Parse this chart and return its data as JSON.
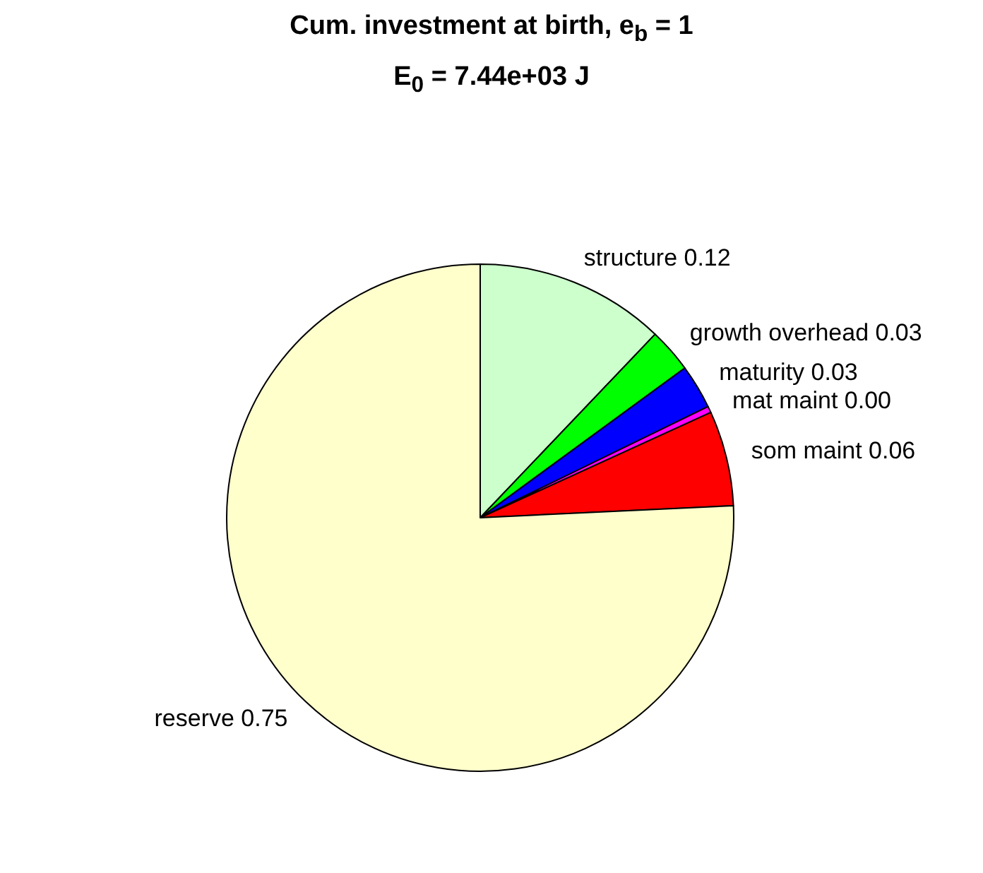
{
  "chart_data": {
    "type": "pie",
    "title": "Cum. investment at birth, e$_{b}$ = 1",
    "subtitle": "E$_{0}$ = 7.44e+03 J",
    "categories": [
      "structure",
      "growth overhead",
      "maturity",
      "mat maint",
      "som maint",
      "reserve"
    ],
    "values": [
      0.12,
      0.028,
      0.028,
      0.004,
      0.06,
      0.75
    ],
    "value_labels": [
      "0.12",
      "0.03",
      "0.03",
      "0.00",
      "0.06",
      "0.75"
    ],
    "colors": [
      "#ccffcc",
      "#00ff00",
      "#0000ff",
      "#ff00ff",
      "#ff0000",
      "#ffffcc"
    ],
    "legend": false
  }
}
